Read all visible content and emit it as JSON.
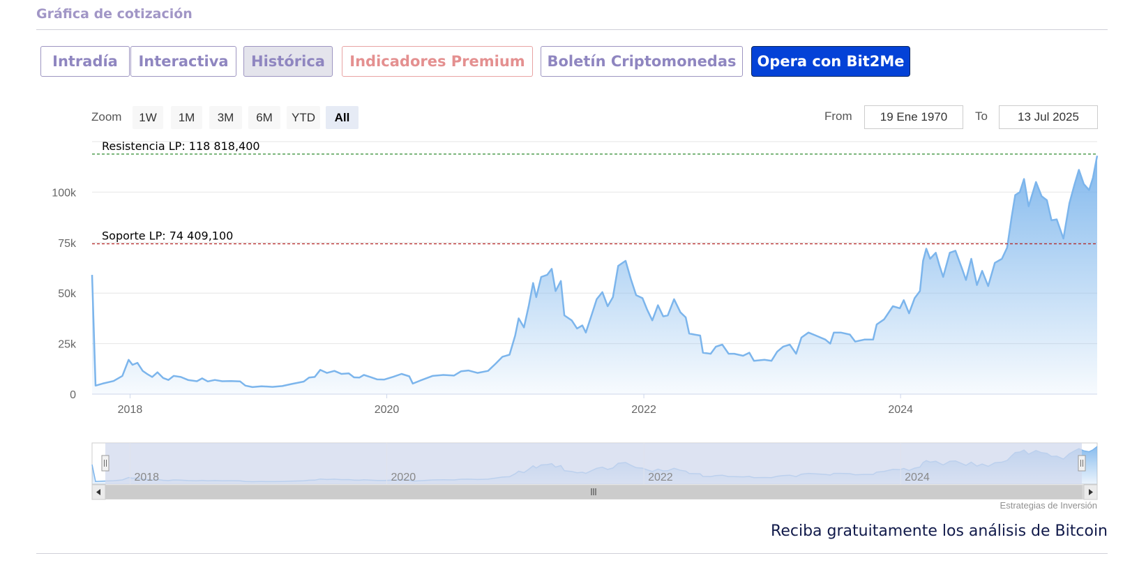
{
  "section_title": "Gráfica de cotización",
  "tabs": [
    {
      "label": "Intradía",
      "style": "normal"
    },
    {
      "label": "Interactiva",
      "style": "normal"
    },
    {
      "label": "Histórica",
      "style": "active"
    },
    {
      "label": "Indicadores Premium",
      "style": "premium"
    },
    {
      "label": "Boletín Criptomonedas",
      "style": "normal"
    },
    {
      "label": "Opera con Bit2Me",
      "style": "cta"
    }
  ],
  "range_selector": {
    "zoom_label": "Zoom",
    "buttons": [
      "1W",
      "1M",
      "3M",
      "6M",
      "YTD",
      "All"
    ],
    "selected": "All",
    "from_label": "From",
    "from_value": "19 Ene 1970",
    "to_label": "To",
    "to_value": "13 Jul 2025"
  },
  "colors": {
    "line": "#7cb5ec",
    "resistance": "#2e8b2e",
    "support": "#b22222",
    "navigator_mask": "#d2d9ee",
    "cta_bg": "#0442d7"
  },
  "chart_data": {
    "type": "area",
    "title": "",
    "xlabel": "",
    "ylabel": "",
    "x_ticks": [
      "2018",
      "2020",
      "2022",
      "2024"
    ],
    "y_ticks": [
      {
        "value": 0,
        "label": "0"
      },
      {
        "value": 25000,
        "label": "25k"
      },
      {
        "value": 50000,
        "label": "50k"
      },
      {
        "value": 75000,
        "label": "75k"
      },
      {
        "value": 100000,
        "label": "100k"
      }
    ],
    "xlim": [
      "2017-09-15",
      "2025-07-13"
    ],
    "ylim": [
      0,
      125000
    ],
    "grid": true,
    "series": [
      {
        "values": [
          [
            "2017-09-15",
            59000
          ],
          [
            "2017-09-25",
            4200
          ],
          [
            "2017-10-15",
            5200
          ],
          [
            "2017-11-15",
            6500
          ],
          [
            "2017-12-10",
            9000
          ],
          [
            "2017-12-28",
            17000
          ],
          [
            "2018-01-08",
            14500
          ],
          [
            "2018-01-22",
            15500
          ],
          [
            "2018-02-06",
            11500
          ],
          [
            "2018-02-20",
            9800
          ],
          [
            "2018-03-05",
            8500
          ],
          [
            "2018-03-20",
            10800
          ],
          [
            "2018-04-05",
            8000
          ],
          [
            "2018-04-20",
            7000
          ],
          [
            "2018-05-05",
            9000
          ],
          [
            "2018-05-25",
            8500
          ],
          [
            "2018-06-15",
            7000
          ],
          [
            "2018-07-10",
            6400
          ],
          [
            "2018-07-25",
            7800
          ],
          [
            "2018-08-10",
            6300
          ],
          [
            "2018-08-30",
            7000
          ],
          [
            "2018-09-20",
            6400
          ],
          [
            "2018-10-15",
            6500
          ],
          [
            "2018-11-10",
            6300
          ],
          [
            "2018-11-25",
            4200
          ],
          [
            "2018-12-15",
            3500
          ],
          [
            "2019-01-10",
            3900
          ],
          [
            "2019-02-10",
            3600
          ],
          [
            "2019-03-10",
            4000
          ],
          [
            "2019-04-05",
            5000
          ],
          [
            "2019-05-10",
            6200
          ],
          [
            "2019-05-25",
            8200
          ],
          [
            "2019-06-10",
            8500
          ],
          [
            "2019-06-26",
            12000
          ],
          [
            "2019-07-15",
            10500
          ],
          [
            "2019-08-05",
            11500
          ],
          [
            "2019-08-25",
            10000
          ],
          [
            "2019-09-15",
            10300
          ],
          [
            "2019-09-30",
            8300
          ],
          [
            "2019-10-15",
            8200
          ],
          [
            "2019-10-28",
            9500
          ],
          [
            "2019-11-15",
            8500
          ],
          [
            "2019-12-05",
            7300
          ],
          [
            "2019-12-25",
            7200
          ],
          [
            "2020-01-20",
            8600
          ],
          [
            "2020-02-12",
            10000
          ],
          [
            "2020-03-05",
            8800
          ],
          [
            "2020-03-15",
            5200
          ],
          [
            "2020-04-05",
            6700
          ],
          [
            "2020-05-10",
            9000
          ],
          [
            "2020-06-10",
            9500
          ],
          [
            "2020-07-10",
            9200
          ],
          [
            "2020-07-30",
            11300
          ],
          [
            "2020-08-20",
            11700
          ],
          [
            "2020-09-15",
            10500
          ],
          [
            "2020-10-15",
            11500
          ],
          [
            "2020-11-05",
            15000
          ],
          [
            "2020-11-25",
            18500
          ],
          [
            "2020-12-15",
            19500
          ],
          [
            "2020-12-31",
            29000
          ],
          [
            "2021-01-10",
            37500
          ],
          [
            "2021-01-25",
            33000
          ],
          [
            "2021-02-08",
            44000
          ],
          [
            "2021-02-20",
            55000
          ],
          [
            "2021-03-01",
            48000
          ],
          [
            "2021-03-15",
            58000
          ],
          [
            "2021-04-01",
            59000
          ],
          [
            "2021-04-14",
            62000
          ],
          [
            "2021-04-25",
            51000
          ],
          [
            "2021-05-10",
            56000
          ],
          [
            "2021-05-20",
            39000
          ],
          [
            "2021-06-10",
            36500
          ],
          [
            "2021-06-25",
            32500
          ],
          [
            "2021-07-10",
            34000
          ],
          [
            "2021-07-20",
            30500
          ],
          [
            "2021-08-05",
            39000
          ],
          [
            "2021-08-20",
            47000
          ],
          [
            "2021-09-05",
            50500
          ],
          [
            "2021-09-20",
            43500
          ],
          [
            "2021-10-05",
            48000
          ],
          [
            "2021-10-20",
            63500
          ],
          [
            "2021-11-10",
            66000
          ],
          [
            "2021-11-25",
            57000
          ],
          [
            "2021-12-10",
            49000
          ],
          [
            "2021-12-28",
            47500
          ],
          [
            "2022-01-10",
            42000
          ],
          [
            "2022-01-25",
            36500
          ],
          [
            "2022-02-10",
            44000
          ],
          [
            "2022-02-25",
            38500
          ],
          [
            "2022-03-10",
            39000
          ],
          [
            "2022-03-28",
            47000
          ],
          [
            "2022-04-15",
            40500
          ],
          [
            "2022-04-30",
            38000
          ],
          [
            "2022-05-10",
            30000
          ],
          [
            "2022-05-25",
            29500
          ],
          [
            "2022-06-10",
            29000
          ],
          [
            "2022-06-18",
            20500
          ],
          [
            "2022-07-10",
            20000
          ],
          [
            "2022-07-25",
            23500
          ],
          [
            "2022-08-12",
            24500
          ],
          [
            "2022-08-30",
            20000
          ],
          [
            "2022-09-15",
            20000
          ],
          [
            "2022-10-10",
            19000
          ],
          [
            "2022-10-28",
            20500
          ],
          [
            "2022-11-10",
            16500
          ],
          [
            "2022-12-10",
            17000
          ],
          [
            "2022-12-30",
            16500
          ],
          [
            "2023-01-15",
            21000
          ],
          [
            "2023-02-01",
            23500
          ],
          [
            "2023-02-20",
            24500
          ],
          [
            "2023-03-10",
            20000
          ],
          [
            "2023-03-25",
            28000
          ],
          [
            "2023-04-14",
            30500
          ],
          [
            "2023-05-05",
            29000
          ],
          [
            "2023-06-01",
            27000
          ],
          [
            "2023-06-15",
            25000
          ],
          [
            "2023-06-25",
            30500
          ],
          [
            "2023-07-15",
            30500
          ],
          [
            "2023-08-10",
            29500
          ],
          [
            "2023-08-25",
            26000
          ],
          [
            "2023-09-20",
            27000
          ],
          [
            "2023-10-15",
            27000
          ],
          [
            "2023-10-25",
            34500
          ],
          [
            "2023-11-15",
            37000
          ],
          [
            "2023-12-10",
            43500
          ],
          [
            "2023-12-30",
            42500
          ],
          [
            "2024-01-10",
            46500
          ],
          [
            "2024-01-25",
            40000
          ],
          [
            "2024-02-10",
            47500
          ],
          [
            "2024-02-25",
            51000
          ],
          [
            "2024-03-05",
            66000
          ],
          [
            "2024-03-14",
            72000
          ],
          [
            "2024-03-25",
            67000
          ],
          [
            "2024-04-10",
            70000
          ],
          [
            "2024-04-20",
            64000
          ],
          [
            "2024-05-01",
            58000
          ],
          [
            "2024-05-20",
            70000
          ],
          [
            "2024-06-05",
            71000
          ],
          [
            "2024-06-25",
            61500
          ],
          [
            "2024-07-05",
            56500
          ],
          [
            "2024-07-20",
            67000
          ],
          [
            "2024-08-05",
            54000
          ],
          [
            "2024-08-20",
            61000
          ],
          [
            "2024-09-06",
            53500
          ],
          [
            "2024-09-25",
            65000
          ],
          [
            "2024-10-15",
            67000
          ],
          [
            "2024-10-30",
            72500
          ],
          [
            "2024-11-12",
            88000
          ],
          [
            "2024-11-22",
            98500
          ],
          [
            "2024-12-05",
            100000
          ],
          [
            "2024-12-17",
            106500
          ],
          [
            "2024-12-30",
            93000
          ],
          [
            "2025-01-20",
            105000
          ],
          [
            "2025-02-05",
            98000
          ],
          [
            "2025-02-20",
            96000
          ],
          [
            "2025-03-05",
            86000
          ],
          [
            "2025-03-20",
            86500
          ],
          [
            "2025-04-08",
            77000
          ],
          [
            "2025-04-25",
            94500
          ],
          [
            "2025-05-10",
            104000
          ],
          [
            "2025-05-22",
            111000
          ],
          [
            "2025-06-05",
            104000
          ],
          [
            "2025-06-20",
            101000
          ],
          [
            "2025-07-01",
            107000
          ],
          [
            "2025-07-13",
            118000
          ]
        ]
      }
    ],
    "plot_lines": [
      {
        "label": "Resistencia LP: 118 818,400",
        "value": 118818.4,
        "color": "#2e8b2e",
        "dash": "dashed"
      },
      {
        "label": "Soporte LP: 74 409,100",
        "value": 74409.1,
        "color": "#b22222",
        "dash": "dashed"
      }
    ],
    "navigator": {
      "x_ticks": [
        "2018",
        "2020",
        "2022",
        "2024"
      ],
      "range": [
        "2017-09-15",
        "2025-07-13"
      ]
    }
  },
  "credit": "Estrategias de Inversión",
  "cta_text": "Reciba gratuitamente los análisis de Bitcoin"
}
